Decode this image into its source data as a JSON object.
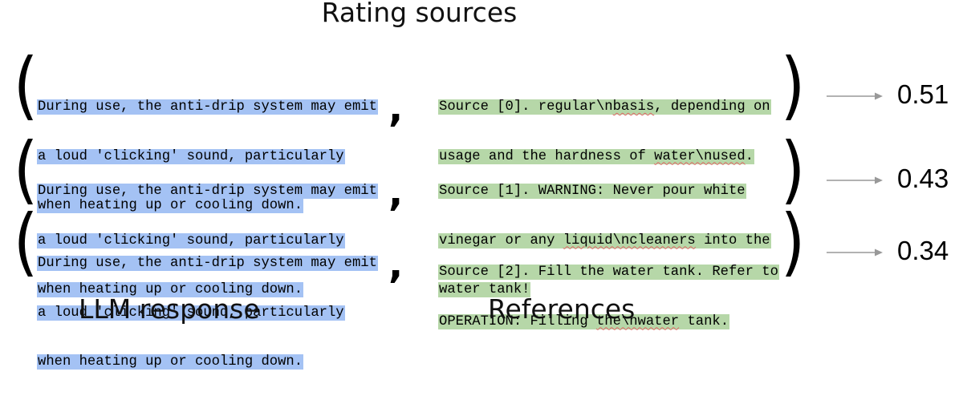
{
  "title": "Rating sources",
  "rows": [
    {
      "response_lines": [
        "During use, the anti-drip system may emit",
        "a loud 'clicking' sound, particularly",
        "when heating up or cooling down."
      ],
      "reference_lines": [
        [
          "Source [0]. regular\\n",
          "basis",
          ", depending on"
        ],
        [
          "usage and the hardness of ",
          "water\\nused",
          "."
        ]
      ],
      "score": "0.51"
    },
    {
      "response_lines": [
        "During use, the anti-drip system may emit",
        "a loud 'clicking' sound, particularly",
        "when heating up or cooling down."
      ],
      "reference_lines": [
        [
          "Source [1]. WARNING: Never pour white",
          "",
          ""
        ],
        [
          "vinegar or any ",
          "liquid\\ncleaners",
          " into the"
        ],
        [
          "water tank!",
          "",
          ""
        ]
      ],
      "score": "0.43"
    },
    {
      "response_lines": [
        "During use, the anti-drip system may emit",
        "a loud 'clicking' sound, particularly",
        "when heating up or cooling down."
      ],
      "reference_lines": [
        [
          "Source [2]. Fill the water tank. Refer to",
          "",
          ""
        ],
        [
          "OPERATION: Filling ",
          "the\\nwater",
          " tank."
        ]
      ],
      "score": "0.34"
    }
  ],
  "labels": {
    "response": "LLM response",
    "references": "References"
  },
  "colors": {
    "response_highlight": "#a4c2f4",
    "reference_highlight": "#b6d7a8",
    "spellcheck_underline": "#e06666",
    "arrow": "#999999"
  }
}
